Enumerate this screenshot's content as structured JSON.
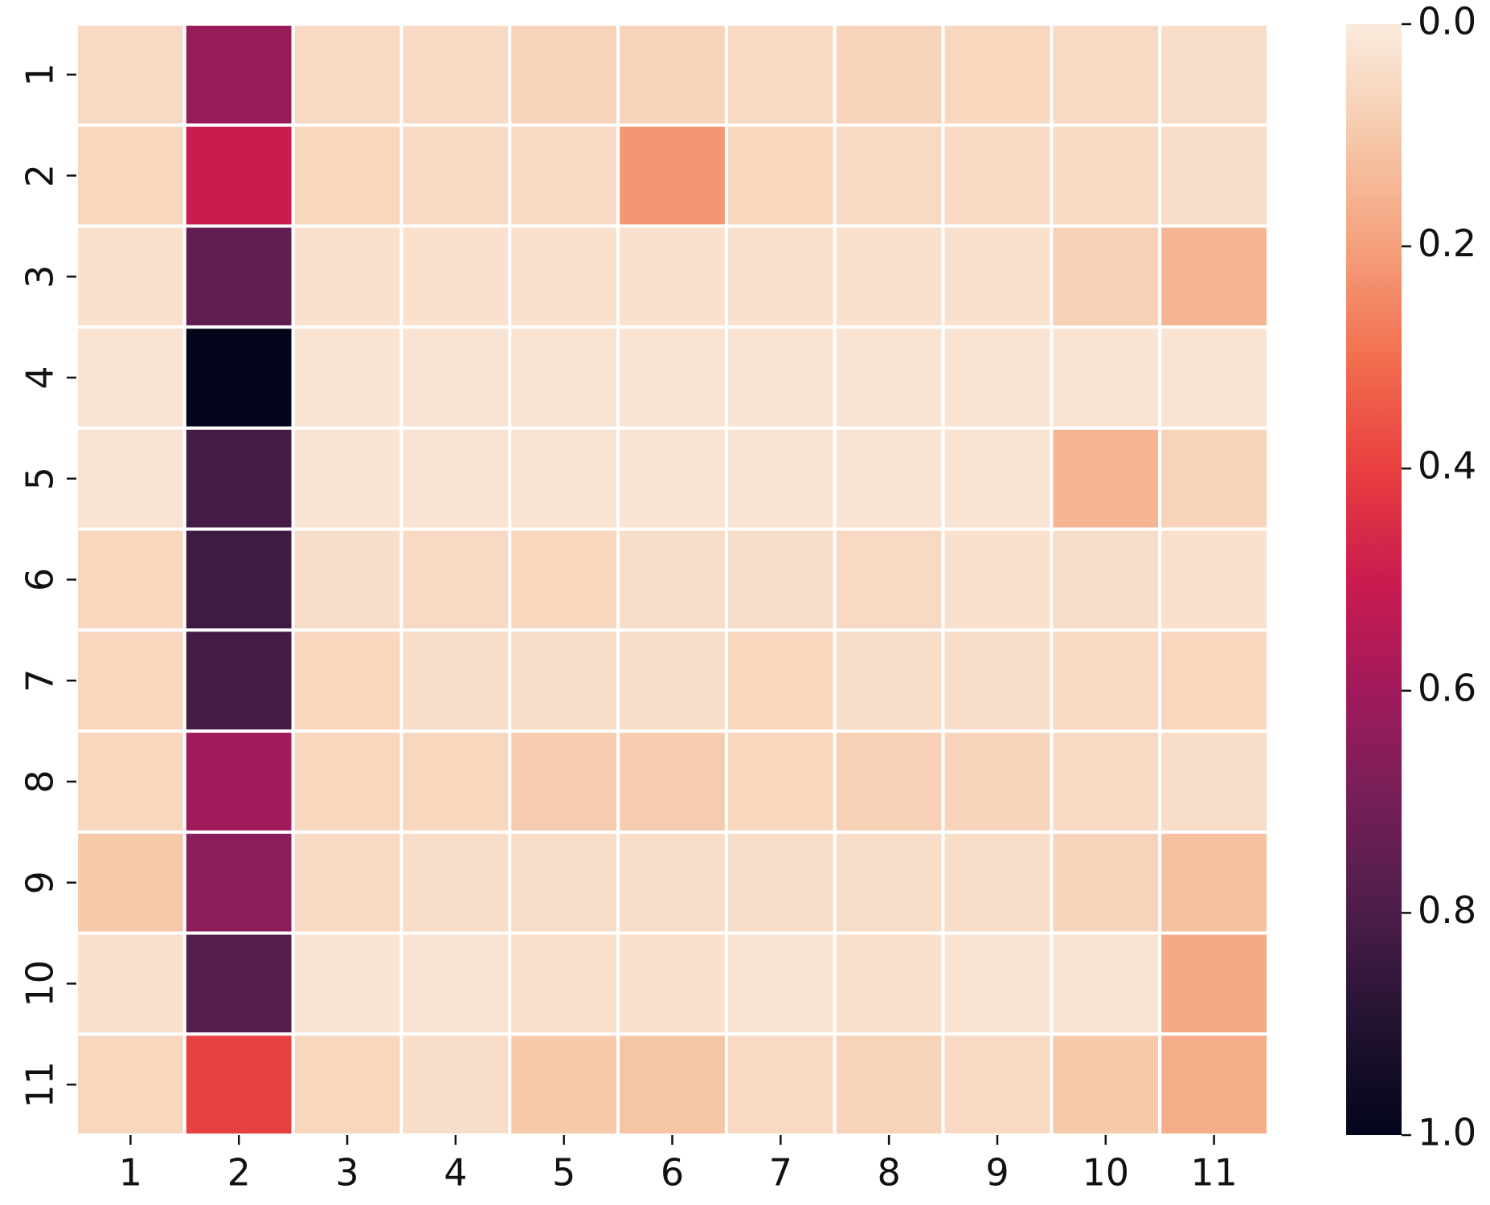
{
  "chart_data": {
    "type": "heatmap",
    "x_categories": [
      "1",
      "2",
      "3",
      "4",
      "5",
      "6",
      "7",
      "8",
      "9",
      "10",
      "11"
    ],
    "y_categories": [
      "1",
      "2",
      "3",
      "4",
      "5",
      "6",
      "7",
      "8",
      "9",
      "10",
      "11"
    ],
    "values": [
      [
        0.05,
        0.62,
        0.05,
        0.05,
        0.07,
        0.07,
        0.05,
        0.07,
        0.06,
        0.05,
        0.04
      ],
      [
        0.06,
        0.5,
        0.06,
        0.05,
        0.05,
        0.22,
        0.06,
        0.05,
        0.05,
        0.05,
        0.04
      ],
      [
        0.03,
        0.75,
        0.03,
        0.03,
        0.03,
        0.03,
        0.03,
        0.03,
        0.03,
        0.08,
        0.15
      ],
      [
        0.02,
        1.0,
        0.02,
        0.02,
        0.02,
        0.02,
        0.02,
        0.02,
        0.02,
        0.02,
        0.02
      ],
      [
        0.02,
        0.82,
        0.02,
        0.02,
        0.02,
        0.02,
        0.02,
        0.02,
        0.02,
        0.15,
        0.07
      ],
      [
        0.06,
        0.83,
        0.04,
        0.05,
        0.06,
        0.04,
        0.04,
        0.05,
        0.03,
        0.04,
        0.03
      ],
      [
        0.06,
        0.82,
        0.06,
        0.04,
        0.04,
        0.04,
        0.06,
        0.04,
        0.04,
        0.05,
        0.06
      ],
      [
        0.06,
        0.6,
        0.06,
        0.06,
        0.09,
        0.09,
        0.06,
        0.08,
        0.07,
        0.05,
        0.04
      ],
      [
        0.1,
        0.65,
        0.05,
        0.04,
        0.04,
        0.04,
        0.04,
        0.04,
        0.04,
        0.07,
        0.12
      ],
      [
        0.03,
        0.78,
        0.02,
        0.02,
        0.03,
        0.03,
        0.02,
        0.03,
        0.02,
        0.02,
        0.18
      ],
      [
        0.06,
        0.4,
        0.06,
        0.04,
        0.1,
        0.11,
        0.05,
        0.07,
        0.05,
        0.1,
        0.17
      ]
    ],
    "colorscale": [
      "#faebdd",
      "#f6c9ab",
      "#f4a07b",
      "#f26f50",
      "#e83f3f",
      "#cb1b4f",
      "#a11a5b",
      "#751f58",
      "#4c1d4b",
      "#221331",
      "#03051a"
    ],
    "zlim": [
      0,
      1
    ],
    "zticks": [
      {
        "value": 0,
        "label": "0.0"
      },
      0.2,
      0.4,
      0.6,
      0.8,
      {
        "value": 1,
        "label": "1.0"
      }
    ]
  }
}
